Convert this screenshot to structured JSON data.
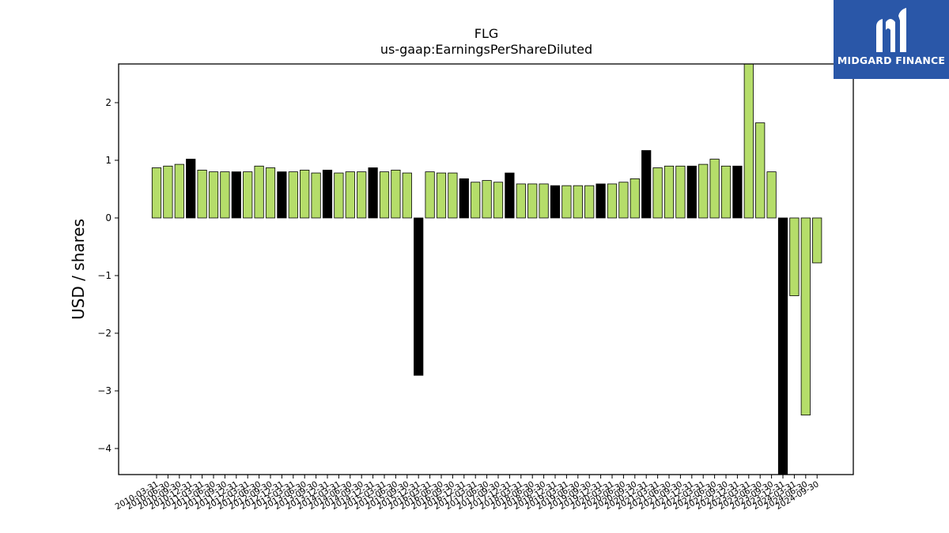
{
  "chart_data": {
    "type": "bar",
    "title": "FLG",
    "subtitle": "us-gaap:EarningsPerShareDiluted",
    "xlabel": "",
    "ylabel": "USD / shares",
    "ylim": [
      -4.45,
      2.68
    ],
    "yticks": [
      2,
      1,
      0,
      -1,
      -2,
      -3,
      -4
    ],
    "ytick_labels": [
      "2",
      "1",
      "0",
      "−1",
      "−2",
      "−3",
      "−4"
    ],
    "grid": false,
    "colors": {
      "quarter": "#b5dd6a",
      "annual": "#000000",
      "edge": "#000000"
    },
    "categories": [
      "2010-03-31",
      "2010-06-30",
      "2010-09-30",
      "2010-12-31",
      "2011-03-31",
      "2011-06-30",
      "2011-09-30",
      "2011-12-31",
      "2012-03-31",
      "2012-06-30",
      "2012-09-30",
      "2012-12-31",
      "2013-03-31",
      "2013-06-30",
      "2013-09-30",
      "2013-12-31",
      "2014-03-31",
      "2014-06-30",
      "2014-09-30",
      "2014-12-31",
      "2015-03-31",
      "2015-06-30",
      "2015-09-30",
      "2015-12-31",
      "2016-03-31",
      "2016-06-30",
      "2016-09-30",
      "2016-12-31",
      "2017-03-31",
      "2017-06-30",
      "2017-09-30",
      "2017-12-31",
      "2018-03-31",
      "2018-06-30",
      "2018-09-30",
      "2018-12-31",
      "2019-03-31",
      "2019-06-30",
      "2019-09-30",
      "2019-12-31",
      "2020-03-31",
      "2020-06-30",
      "2020-09-30",
      "2020-12-31",
      "2021-03-31",
      "2021-06-30",
      "2021-09-30",
      "2021-12-31",
      "2022-03-31",
      "2022-06-30",
      "2022-09-30",
      "2022-12-31",
      "2023-03-31",
      "2023-06-30",
      "2023-09-30",
      "2023-12-31",
      "2024-03-31",
      "2024-06-30",
      "2024-09-30"
    ],
    "values": [
      0.87,
      0.9,
      0.93,
      1.02,
      0.83,
      0.8,
      0.8,
      0.8,
      0.8,
      0.9,
      0.87,
      0.8,
      0.8,
      0.83,
      0.78,
      0.83,
      0.78,
      0.8,
      0.8,
      0.87,
      0.8,
      0.83,
      0.78,
      -2.73,
      0.8,
      0.78,
      0.78,
      0.68,
      0.62,
      0.65,
      0.62,
      0.78,
      0.59,
      0.59,
      0.59,
      0.56,
      0.56,
      0.56,
      0.56,
      0.59,
      0.59,
      0.62,
      0.68,
      1.17,
      0.87,
      0.9,
      0.9,
      0.9,
      0.93,
      1.02,
      0.9,
      0.9,
      2.68,
      1.65,
      0.8,
      -4.45,
      -1.35,
      -3.42,
      -0.78
    ],
    "annual_flags": [
      0,
      0,
      0,
      1,
      0,
      0,
      0,
      1,
      0,
      0,
      0,
      1,
      0,
      0,
      0,
      1,
      0,
      0,
      0,
      1,
      0,
      0,
      0,
      1,
      0,
      0,
      0,
      1,
      0,
      0,
      0,
      1,
      0,
      0,
      0,
      1,
      0,
      0,
      0,
      1,
      0,
      0,
      0,
      1,
      0,
      0,
      0,
      1,
      0,
      0,
      0,
      1,
      0,
      0,
      0,
      1,
      0,
      0,
      0
    ]
  },
  "logo": {
    "text": "MIDGARD FINANCE"
  }
}
